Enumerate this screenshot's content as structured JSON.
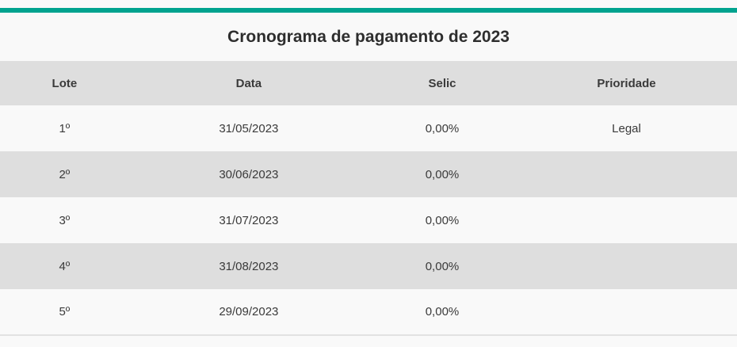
{
  "table": {
    "title": "Cronograma de pagamento de 2023",
    "columns": [
      "Lote",
      "Data",
      "Selic",
      "Prioridade"
    ],
    "rows": [
      [
        "1º",
        "31/05/2023",
        "0,00%",
        "Legal"
      ],
      [
        "2º",
        "30/06/2023",
        "0,00%",
        ""
      ],
      [
        "3º",
        "31/07/2023",
        "0,00%",
        ""
      ],
      [
        "4º",
        "31/08/2023",
        "0,00%",
        ""
      ],
      [
        "5º",
        "29/09/2023",
        "0,00%",
        ""
      ]
    ]
  },
  "chart_data": {
    "type": "table",
    "title": "Cronograma de pagamento de 2023",
    "columns": [
      "Lote",
      "Data",
      "Selic",
      "Prioridade"
    ],
    "rows": [
      [
        "1º",
        "31/05/2023",
        "0,00%",
        "Legal"
      ],
      [
        "2º",
        "30/06/2023",
        "0,00%",
        ""
      ],
      [
        "3º",
        "31/07/2023",
        "0,00%",
        ""
      ],
      [
        "4º",
        "31/08/2023",
        "0,00%",
        ""
      ],
      [
        "5º",
        "29/09/2023",
        "0,00%",
        ""
      ]
    ],
    "layout": {
      "title_position": "top-center",
      "zebra_striping": true,
      "header_bg": "#dedede"
    }
  },
  "colors": {
    "accent_teal": "#00a38f",
    "page_background": "#f9f9f9",
    "header_row_bg": "#dedede",
    "even_row_bg": "#dedede",
    "odd_row_bg": "#f9f9f9",
    "text": "#3a3a3a",
    "title_text": "#2e2e2e",
    "bottom_border": "#e2e2e2"
  }
}
